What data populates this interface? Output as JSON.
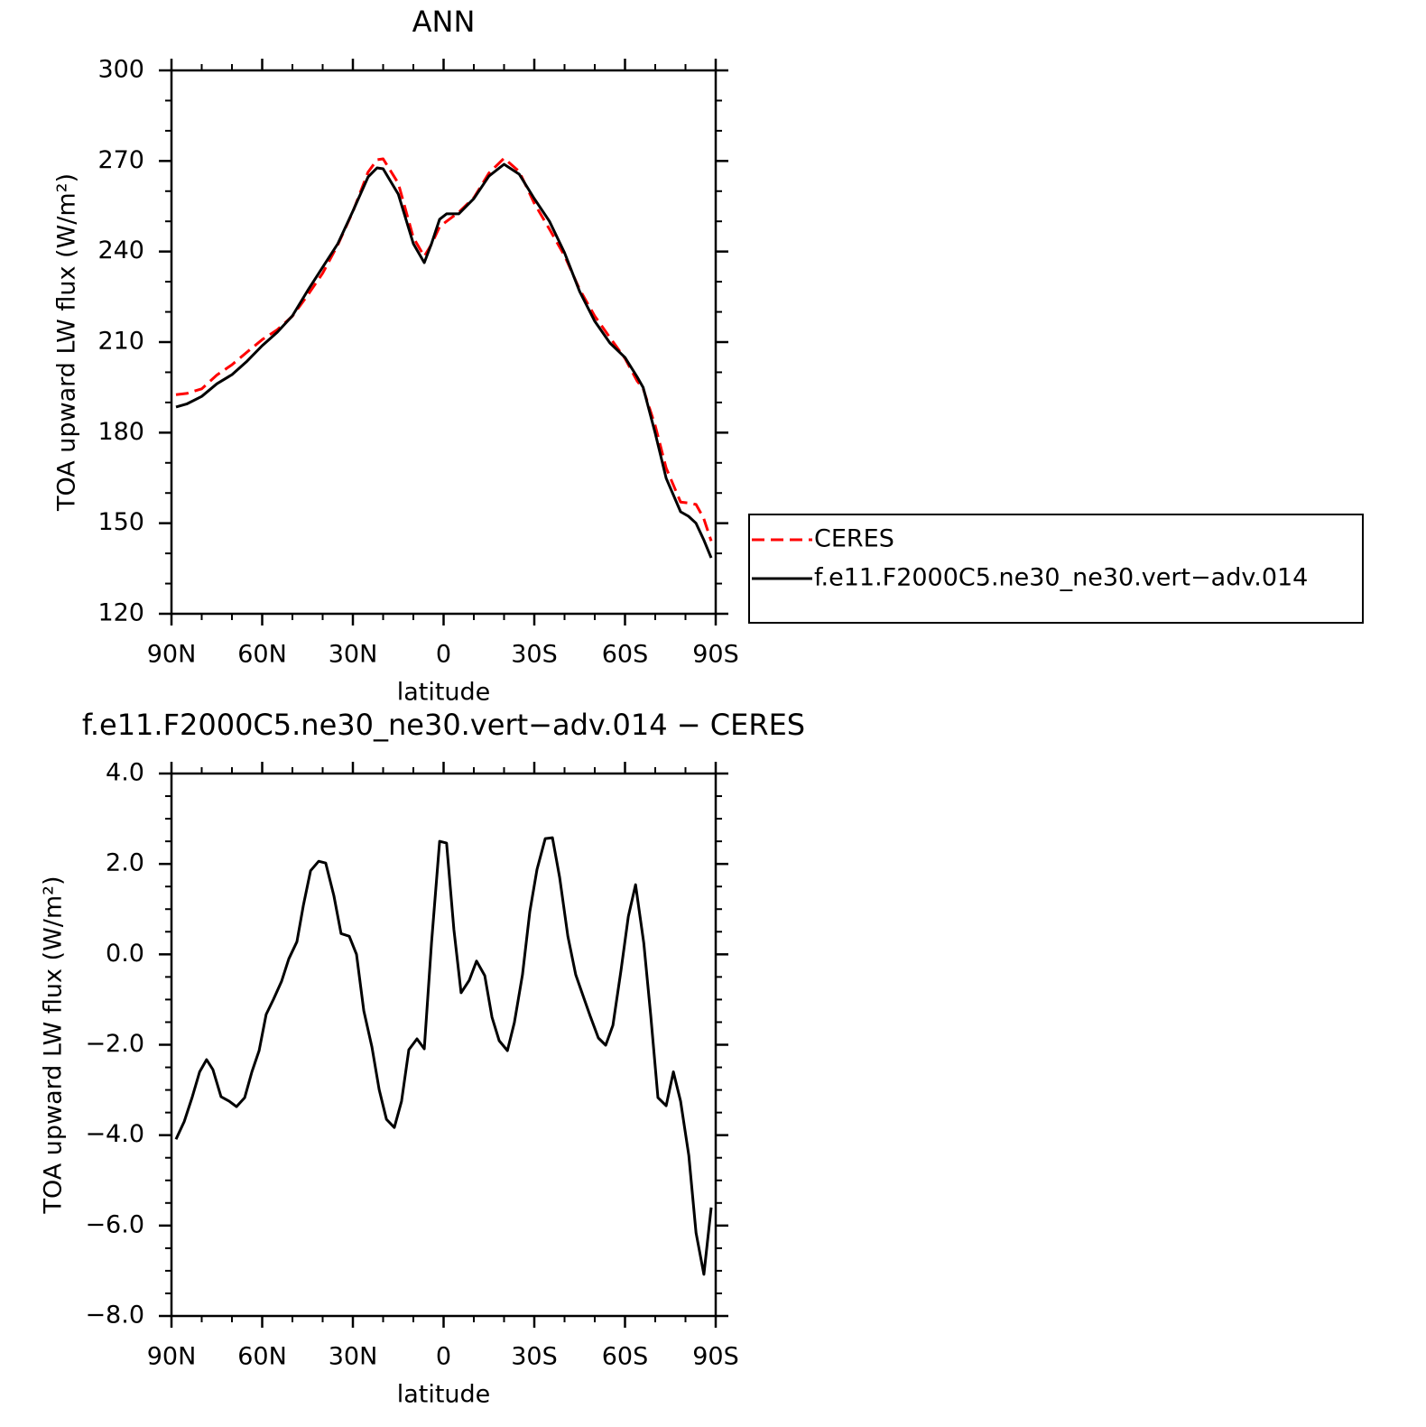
{
  "chart_data": [
    {
      "type": "line",
      "title": "ANN",
      "xlabel": "latitude",
      "ylabel": "TOA upward LW flux (W/m²)",
      "x": [
        88.5,
        85,
        80,
        75,
        70,
        65,
        60,
        55,
        50,
        45,
        40,
        35,
        30,
        25,
        22,
        20,
        15,
        10,
        6.4,
        4,
        1.3,
        -1,
        -5,
        -10,
        -15,
        -20,
        -25,
        -30,
        -35,
        -40,
        -45,
        -50,
        -55,
        -60,
        -64,
        -66,
        -70,
        -73.6,
        -78.4,
        -81,
        -83.5,
        -86,
        -88.5
      ],
      "series": [
        {
          "name": "CERES",
          "color": "#ff0000",
          "dashed": true,
          "values": [
            192.6,
            193,
            194.5,
            199.1,
            202.5,
            206.7,
            210.8,
            214.1,
            218.6,
            225.5,
            232.8,
            242.2,
            253.2,
            266.3,
            270.4,
            270.7,
            262.6,
            244.6,
            238.4,
            242.4,
            248.2,
            250,
            253,
            257.8,
            266,
            270.9,
            266.5,
            256,
            247.4,
            238.6,
            227.4,
            218.6,
            211.5,
            204.6,
            197.1,
            194.6,
            182.3,
            168.3,
            157,
            156.7,
            156.2,
            151.7,
            144.1
          ]
        },
        {
          "name": "f.e11.F2000C5.ne30_ne30.vert−adv.014",
          "color": "#000000",
          "dashed": false,
          "values": [
            188.5,
            189.5,
            192,
            196.2,
            199.2,
            203.7,
            208.8,
            213.3,
            218.7,
            227,
            234.8,
            242.6,
            253.4,
            264.7,
            267.7,
            267.4,
            259,
            242.6,
            236.3,
            242.6,
            250.7,
            252.5,
            252.5,
            257.5,
            265,
            268.9,
            265.6,
            257.5,
            250,
            239.6,
            226.7,
            216.9,
            209.7,
            204.9,
            198.5,
            195,
            179.8,
            164.9,
            153.8,
            152.3,
            150,
            144.6,
            138.5
          ]
        }
      ],
      "xlim": [
        90,
        -90
      ],
      "xticks": [
        {
          "value": 90,
          "label": "90N"
        },
        {
          "value": 60,
          "label": "60N"
        },
        {
          "value": 30,
          "label": "30N"
        },
        0,
        {
          "value": -30,
          "label": "30S"
        },
        {
          "value": -60,
          "label": "60S"
        },
        {
          "value": -90,
          "label": "90S"
        }
      ],
      "xminorticks": [
        80,
        70,
        50,
        40,
        20,
        10,
        -10,
        -20,
        -40,
        -50,
        -70,
        -80
      ],
      "ylim": [
        120,
        300
      ],
      "yticks": [
        120,
        150,
        180,
        210,
        240,
        270,
        300
      ],
      "yminorticks": [
        130,
        140,
        160,
        170,
        190,
        200,
        220,
        230,
        250,
        260,
        280,
        290
      ],
      "legend": "outside-right"
    },
    {
      "type": "line",
      "title": "f.e11.F2000C5.ne30_ne30.vert−adv.014 − CERES",
      "xlabel": "latitude",
      "ylabel": "TOA upward LW flux (W/m²)",
      "x": [
        88.5,
        85.8,
        83.1,
        80.7,
        78.4,
        76.3,
        73.6,
        70.9,
        68.5,
        65.8,
        63.4,
        61,
        58.7,
        56.3,
        53.6,
        51.2,
        48.5,
        46.4,
        44,
        41.3,
        39,
        36.3,
        33.9,
        31.2,
        28.8,
        26.4,
        23.7,
        21.3,
        18.9,
        16.3,
        13.9,
        11.5,
        8.8,
        6.4,
        4,
        1.3,
        -1,
        -3.4,
        -5.8,
        -8.5,
        -10.9,
        -13.6,
        -16,
        -18.4,
        -21.1,
        -23.4,
        -26.1,
        -28.5,
        -30.9,
        -33.6,
        -36,
        -38.4,
        -41.1,
        -43.7,
        -46.1,
        -48.5,
        -51.2,
        -53.6,
        -56,
        -58.7,
        -61.1,
        -63.5,
        -66.2,
        -68.5,
        -70.9,
        -73.6,
        -76,
        -78.4,
        -81.1,
        -83.5,
        -86.1,
        -88.5
      ],
      "color": "#000000",
      "values": [
        -4.09,
        -3.7,
        -3.15,
        -2.6,
        -2.33,
        -2.55,
        -3.15,
        -3.25,
        -3.37,
        -3.17,
        -2.6,
        -2.13,
        -1.33,
        -1.0,
        -0.6,
        -0.1,
        0.28,
        1.08,
        1.85,
        2.06,
        2.02,
        1.3,
        0.46,
        0.4,
        0.0,
        -1.25,
        -2.05,
        -2.99,
        -3.65,
        -3.83,
        -3.25,
        -2.11,
        -1.87,
        -2.09,
        0.25,
        2.5,
        2.46,
        0.55,
        -0.85,
        -0.57,
        -0.15,
        -0.47,
        -1.39,
        -1.91,
        -2.13,
        -1.51,
        -0.45,
        0.94,
        1.88,
        2.56,
        2.58,
        1.7,
        0.4,
        -0.45,
        -0.91,
        -1.37,
        -1.85,
        -2.01,
        -1.57,
        -0.35,
        0.84,
        1.54,
        0.25,
        -1.35,
        -3.17,
        -3.35,
        -2.6,
        -3.25,
        -4.45,
        -6.16,
        -7.08,
        -5.6
      ],
      "xlim": [
        90,
        -90
      ],
      "xticks": [
        {
          "value": 90,
          "label": "90N"
        },
        {
          "value": 60,
          "label": "60N"
        },
        {
          "value": 30,
          "label": "30N"
        },
        0,
        {
          "value": -30,
          "label": "30S"
        },
        {
          "value": -60,
          "label": "60S"
        },
        {
          "value": -90,
          "label": "90S"
        }
      ],
      "xminorticks": [
        80,
        70,
        50,
        40,
        20,
        10,
        -10,
        -20,
        -40,
        -50,
        -70,
        -80
      ],
      "ylim": [
        -8,
        4
      ],
      "yticks": [
        {
          "value": -8,
          "label": "−8.0"
        },
        {
          "value": -6,
          "label": "−6.0"
        },
        {
          "value": -4,
          "label": "−4.0"
        },
        {
          "value": -2,
          "label": "−2.0"
        },
        {
          "value": 0,
          "label": "0.0"
        },
        {
          "value": 2,
          "label": "2.0"
        },
        {
          "value": 4,
          "label": "4.0"
        }
      ],
      "yminorticks": [
        -7.5,
        -7,
        -6.5,
        -5.5,
        -5,
        -4.5,
        -3.5,
        -3,
        -2.5,
        -1.5,
        -1,
        -0.5,
        0.5,
        1,
        1.5,
        2.5,
        3,
        3.5
      ]
    }
  ]
}
